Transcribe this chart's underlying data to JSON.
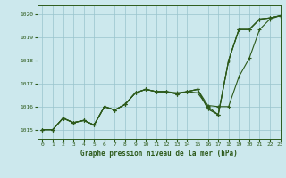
{
  "title": "Graphe pression niveau de la mer (hPa)",
  "background_color": "#cce8ed",
  "grid_color": "#99c4cc",
  "line_color": "#2d5a1b",
  "xlim": [
    -0.5,
    23
  ],
  "ylim": [
    1014.6,
    1020.4
  ],
  "yticks": [
    1015,
    1016,
    1017,
    1018,
    1019,
    1020
  ],
  "xticks": [
    0,
    1,
    2,
    3,
    4,
    5,
    6,
    7,
    8,
    9,
    10,
    11,
    12,
    13,
    14,
    15,
    16,
    17,
    18,
    19,
    20,
    21,
    22,
    23
  ],
  "line1_x": [
    0,
    1,
    2,
    3,
    4,
    5,
    6,
    7,
    8,
    9,
    10,
    11,
    12,
    13,
    14,
    15,
    16,
    17,
    18,
    19,
    20,
    21,
    22,
    23
  ],
  "line1_y": [
    1015.0,
    1015.0,
    1015.5,
    1015.3,
    1015.4,
    1015.2,
    1016.0,
    1015.85,
    1016.1,
    1016.6,
    1016.75,
    1016.65,
    1016.65,
    1016.55,
    1016.65,
    1016.75,
    1015.9,
    1015.65,
    1018.0,
    1019.35,
    1019.35,
    1019.8,
    1019.85,
    1019.95
  ],
  "line2_x": [
    0,
    1,
    2,
    3,
    4,
    5,
    6,
    7,
    8,
    9,
    10,
    11,
    12,
    13,
    14,
    15,
    16,
    17,
    18,
    19,
    20,
    21,
    22,
    23
  ],
  "line2_y": [
    1015.0,
    1015.0,
    1015.5,
    1015.3,
    1015.4,
    1015.2,
    1016.0,
    1015.85,
    1016.1,
    1016.6,
    1016.75,
    1016.65,
    1016.65,
    1016.6,
    1016.65,
    1016.75,
    1016.05,
    1016.0,
    1016.0,
    1017.3,
    1018.1,
    1019.35,
    1019.8,
    1019.95
  ],
  "line3_x": [
    0,
    1,
    2,
    3,
    4,
    5,
    6,
    7,
    8,
    9,
    10,
    11,
    12,
    13,
    14,
    15,
    16,
    17,
    18,
    19,
    20,
    21,
    22,
    23
  ],
  "line3_y": [
    1015.0,
    1015.0,
    1015.5,
    1015.3,
    1015.4,
    1015.2,
    1016.0,
    1015.85,
    1016.1,
    1016.6,
    1016.75,
    1016.65,
    1016.65,
    1016.55,
    1016.65,
    1016.6,
    1016.0,
    1015.65,
    1018.0,
    1019.35,
    1019.35,
    1019.8,
    1019.85,
    1019.95
  ],
  "line4_x": [
    0,
    1,
    2,
    3,
    4,
    5,
    6,
    7,
    8,
    9,
    10,
    11,
    12,
    13,
    14,
    15,
    16,
    17,
    18,
    19,
    20,
    21,
    22,
    23
  ],
  "line4_y": [
    1015.0,
    1015.0,
    1015.5,
    1015.3,
    1015.4,
    1015.2,
    1016.0,
    1015.85,
    1016.1,
    1016.6,
    1016.75,
    1016.65,
    1016.65,
    1016.55,
    1016.65,
    1016.75,
    1015.9,
    1015.65,
    1018.0,
    1019.35,
    1019.35,
    1019.8,
    1019.85,
    1019.95
  ]
}
